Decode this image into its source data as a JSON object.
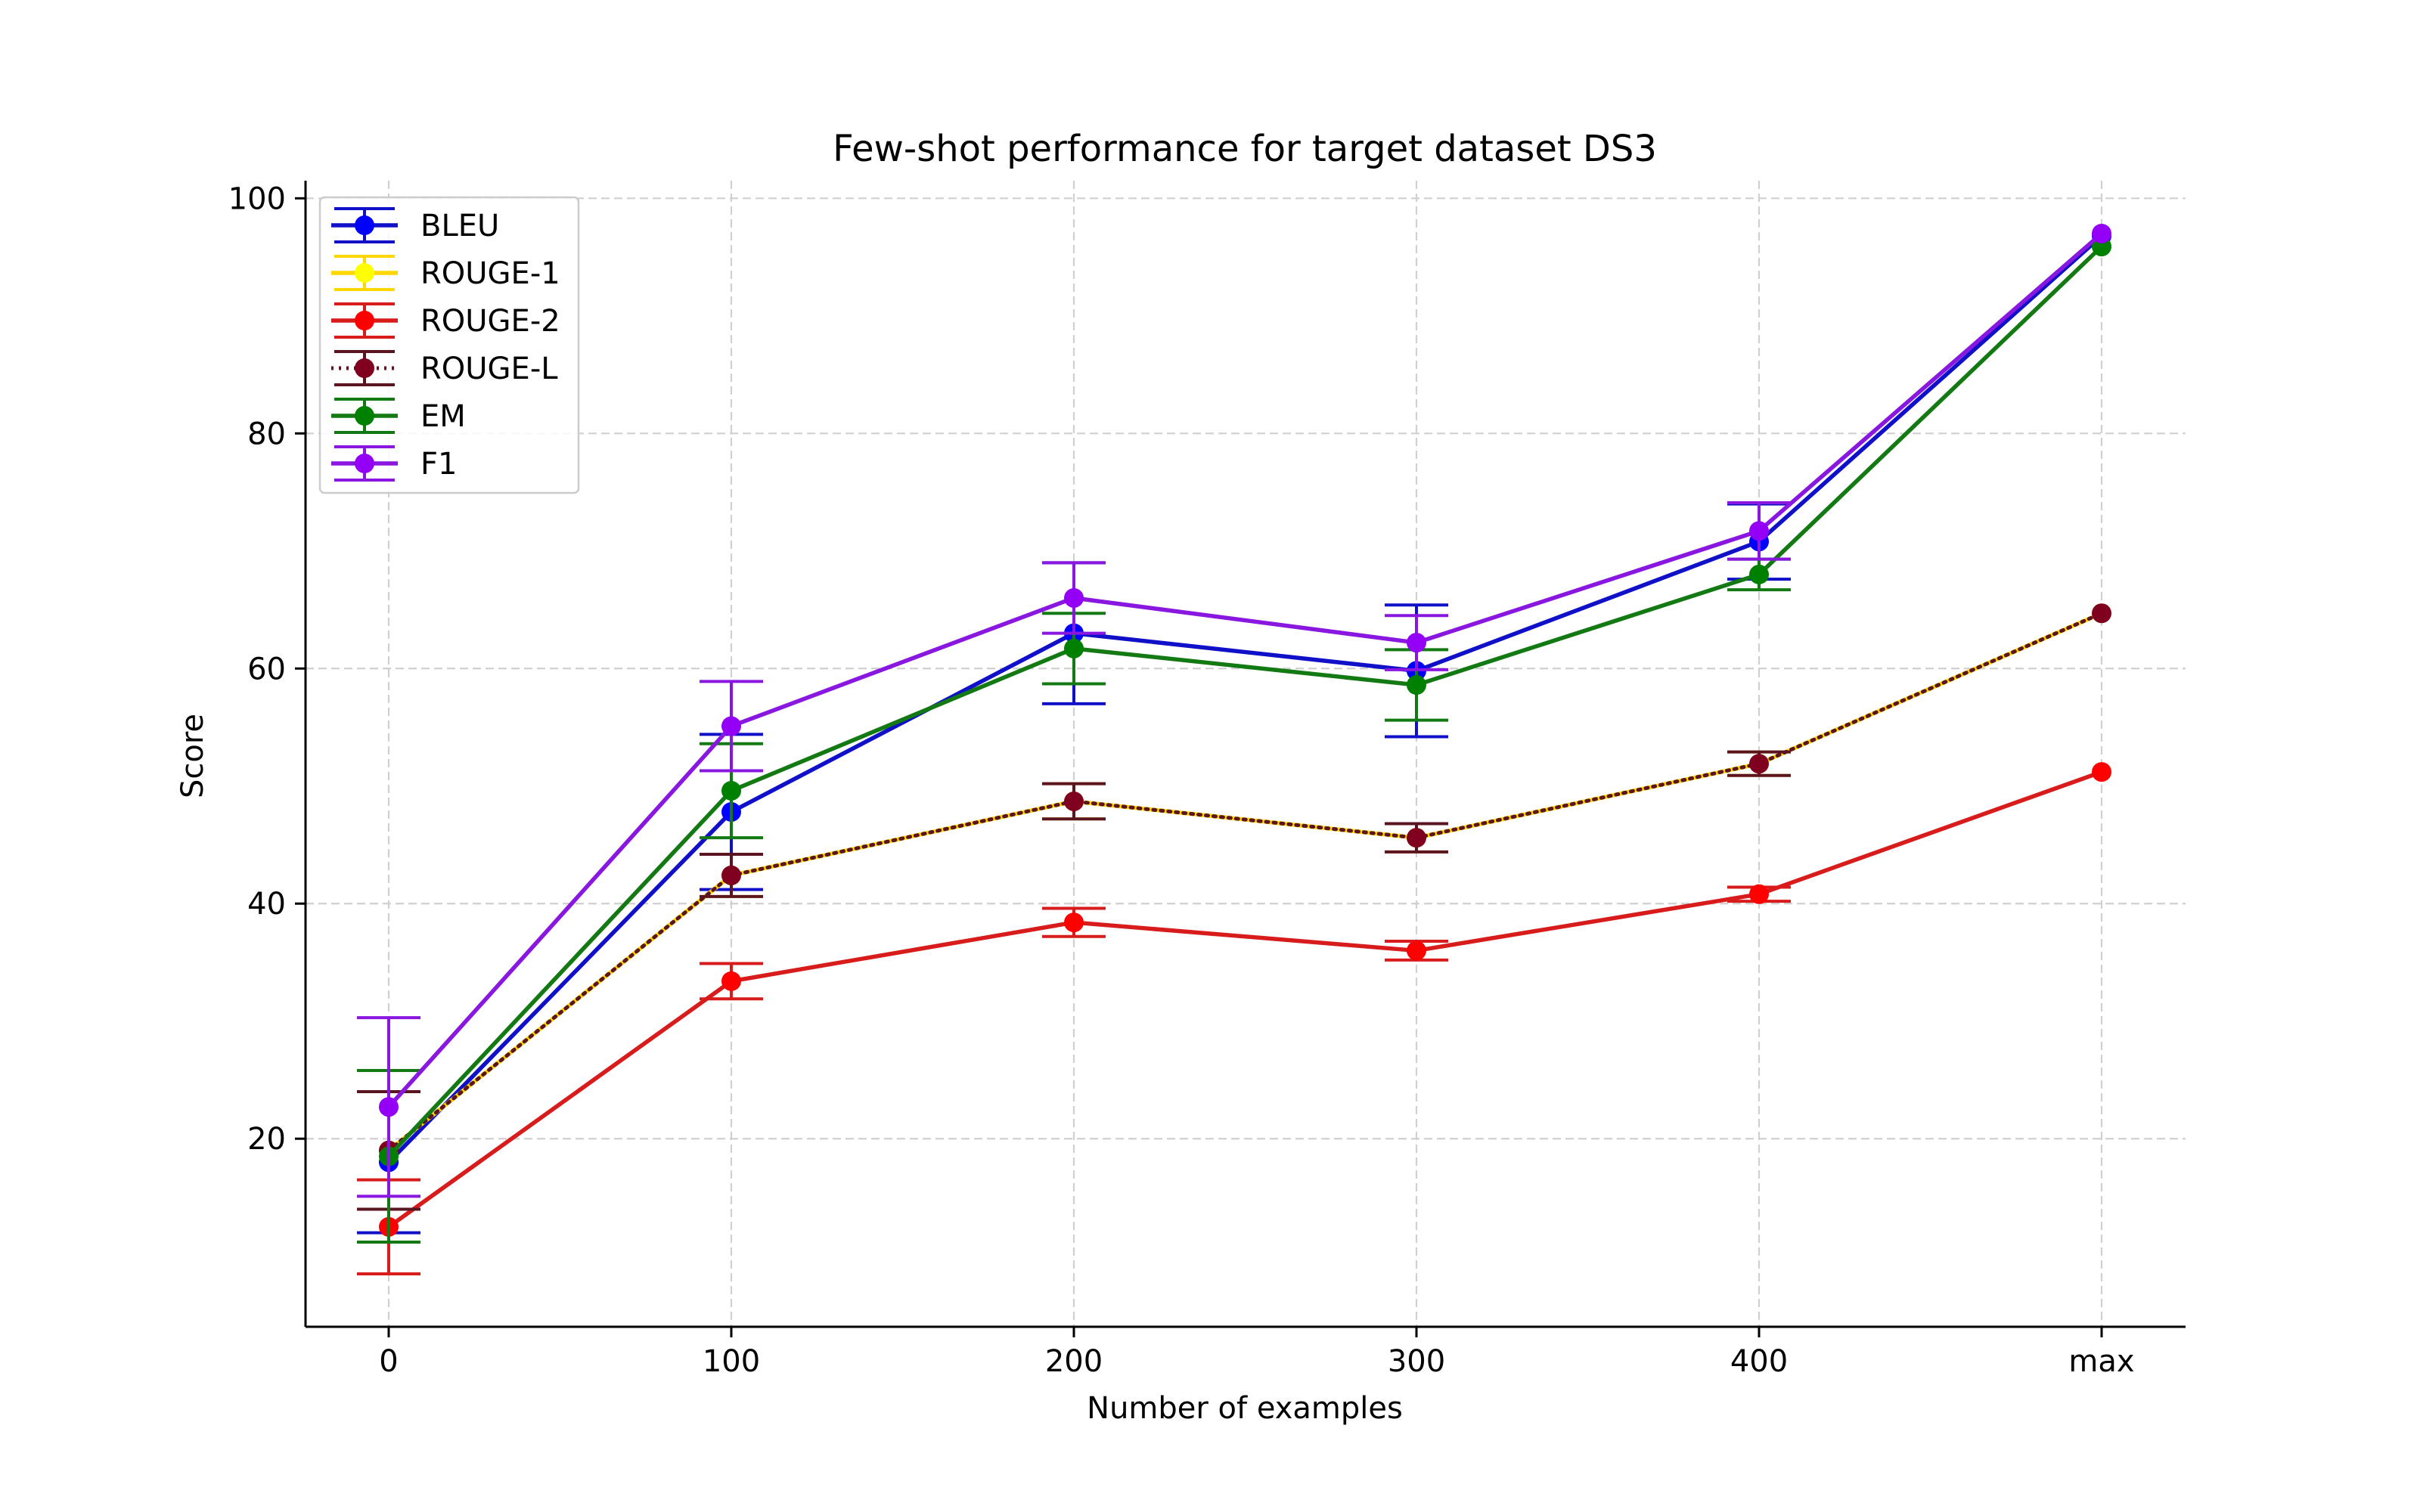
{
  "chart_data": {
    "type": "line",
    "title": "Few-shot performance for target dataset DS3",
    "xlabel": "Number of examples",
    "ylabel": "Score",
    "categories": [
      "0",
      "100",
      "200",
      "300",
      "400",
      "max"
    ],
    "ylim": [
      4,
      101.5
    ],
    "yticks": [
      20,
      40,
      60,
      80,
      100
    ],
    "grid": true,
    "legend_position": "top-left",
    "series": [
      {
        "name": "BLEU",
        "color": "#0000ff",
        "line_color": "#1010c8",
        "linestyle": "solid",
        "values": [
          18.0,
          47.8,
          63.0,
          59.8,
          70.8,
          96.8
        ],
        "errors": [
          6.0,
          6.6,
          6.0,
          5.6,
          3.2,
          0.0
        ]
      },
      {
        "name": "ROUGE-1",
        "color": "#ffff00",
        "line_color": "#ffd700",
        "linestyle": "solid",
        "values": [
          19.0,
          42.4,
          48.7,
          45.6,
          51.9,
          64.7
        ],
        "errors": [
          5.0,
          1.8,
          1.5,
          1.2,
          1.0,
          0.0
        ]
      },
      {
        "name": "ROUGE-2",
        "color": "#ff0000",
        "line_color": "#d81b1b",
        "linestyle": "solid",
        "values": [
          12.5,
          33.4,
          38.4,
          36.0,
          40.8,
          51.2
        ],
        "errors": [
          4.0,
          1.5,
          1.2,
          0.8,
          0.6,
          0.0
        ]
      },
      {
        "name": "ROUGE-L",
        "color": "#800020",
        "line_color": "#5a1520",
        "linestyle": "dotted",
        "values": [
          19.0,
          42.4,
          48.7,
          45.6,
          51.9,
          64.7
        ],
        "errors": [
          5.0,
          1.8,
          1.5,
          1.2,
          1.0,
          0.0
        ]
      },
      {
        "name": "EM",
        "color": "#008000",
        "line_color": "#137a13",
        "linestyle": "solid",
        "values": [
          18.5,
          49.6,
          61.7,
          58.6,
          68.0,
          95.9
        ],
        "errors": [
          7.3,
          4.0,
          3.0,
          3.0,
          1.3,
          0.0
        ]
      },
      {
        "name": "F1",
        "color": "#9400f5",
        "line_color": "#8a17e0",
        "linestyle": "solid",
        "values": [
          22.7,
          55.1,
          66.0,
          62.2,
          71.7,
          97.0
        ],
        "errors": [
          7.6,
          3.8,
          3.0,
          2.3,
          2.4,
          0.0
        ]
      }
    ]
  }
}
